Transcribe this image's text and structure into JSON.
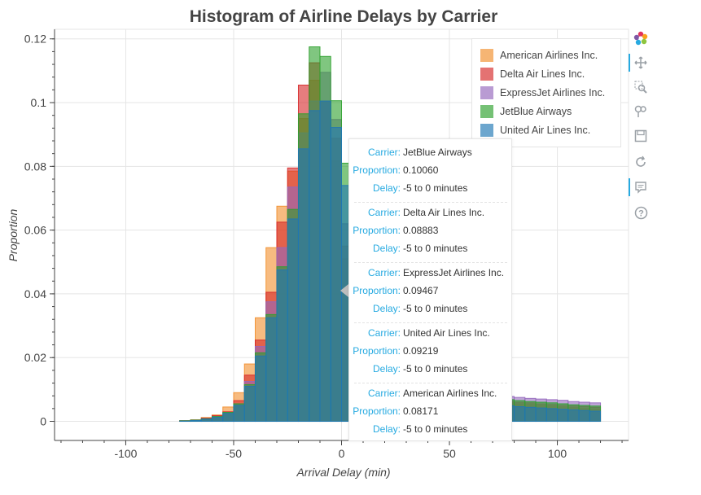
{
  "chart_data": {
    "type": "histogram",
    "title": "Histogram of Airline Delays by Carrier",
    "xlabel": "Arrival Delay (min)",
    "ylabel": "Proportion",
    "xlim": [
      -133,
      133
    ],
    "ylim": [
      -0.006,
      0.123
    ],
    "xticks": [
      -100,
      -50,
      0,
      50,
      100
    ],
    "yticks": [
      0,
      0.02,
      0.04,
      0.06,
      0.08,
      0.1,
      0.12
    ],
    "xtick_labels": [
      "-100",
      "-50",
      "0",
      "50",
      "100"
    ],
    "ytick_labels": [
      "0",
      "0.02",
      "0.04",
      "0.06",
      "0.08",
      "0.1",
      "0.12"
    ],
    "bin_width": 5,
    "bin_left": [
      -120,
      -115,
      -110,
      -105,
      -100,
      -95,
      -90,
      -85,
      -80,
      -75,
      -70,
      -65,
      -60,
      -55,
      -50,
      -45,
      -40,
      -35,
      -30,
      -25,
      -20,
      -15,
      -10,
      -5,
      0,
      5,
      10,
      15,
      20,
      25,
      30,
      35,
      40,
      45,
      50,
      55,
      60,
      65,
      70,
      75,
      80,
      85,
      90,
      95,
      100,
      105,
      110,
      115
    ],
    "grid": true,
    "legend_position": "top-right",
    "series": [
      {
        "name": "American Airlines Inc.",
        "color": "#f28e2b",
        "values": [
          0,
          0,
          0,
          0,
          0,
          0,
          0,
          0,
          0,
          0.0002,
          0.0005,
          0.0012,
          0.002,
          0.0045,
          0.009,
          0.018,
          0.0325,
          0.0545,
          0.0675,
          0.0785,
          0.095,
          0.107,
          0.1005,
          0.0817,
          0.051,
          0.034,
          0.024,
          0.018,
          0.014,
          0.012,
          0.01,
          0.009,
          0.008,
          0.0075,
          0.007,
          0.0068,
          0.0065,
          0.0062,
          0.006,
          0.0058,
          0.0055,
          0.0053,
          0.005,
          0.0048,
          0.0045,
          0.0043,
          0.004,
          0.0038
        ]
      },
      {
        "name": "Delta Air Lines Inc.",
        "color": "#d62728",
        "values": [
          0,
          0,
          0,
          0,
          0,
          0,
          0,
          0,
          0,
          0.0002,
          0.0004,
          0.001,
          0.0018,
          0.003,
          0.0065,
          0.0145,
          0.0255,
          0.0405,
          0.0625,
          0.0795,
          0.1055,
          0.1125,
          0.1005,
          0.0888,
          0.055,
          0.036,
          0.025,
          0.019,
          0.015,
          0.013,
          0.0115,
          0.0105,
          0.0095,
          0.0085,
          0.008,
          0.0075,
          0.007,
          0.0068,
          0.0065,
          0.0063,
          0.006,
          0.0058,
          0.0055,
          0.0053,
          0.005,
          0.0048,
          0.0046,
          0.0044
        ]
      },
      {
        "name": "ExpressJet Airlines Inc.",
        "color": "#9467bd",
        "values": [
          0,
          0,
          0,
          0,
          0,
          0,
          0,
          0,
          0,
          0.0001,
          0.0003,
          0.0008,
          0.0015,
          0.0028,
          0.0055,
          0.0125,
          0.0235,
          0.0375,
          0.0545,
          0.0735,
          0.0905,
          0.1005,
          0.1095,
          0.0947,
          0.062,
          0.041,
          0.029,
          0.022,
          0.018,
          0.015,
          0.013,
          0.012,
          0.011,
          0.0105,
          0.01,
          0.0095,
          0.009,
          0.0085,
          0.008,
          0.0078,
          0.0075,
          0.0072,
          0.007,
          0.0068,
          0.0066,
          0.0062,
          0.006,
          0.0058
        ]
      },
      {
        "name": "JetBlue Airways",
        "color": "#2ca02c",
        "values": [
          0,
          0,
          0,
          0,
          0,
          0,
          0,
          0,
          0,
          0.0002,
          0.0004,
          0.0008,
          0.0015,
          0.0028,
          0.0055,
          0.0115,
          0.0215,
          0.0335,
          0.0485,
          0.0665,
          0.0965,
          0.1175,
          0.1145,
          0.1006,
          0.081,
          0.048,
          0.033,
          0.024,
          0.018,
          0.015,
          0.013,
          0.0115,
          0.0105,
          0.0095,
          0.009,
          0.0085,
          0.008,
          0.0075,
          0.007,
          0.0068,
          0.0065,
          0.0062,
          0.006,
          0.0058,
          0.0055,
          0.0052,
          0.005,
          0.0048
        ]
      },
      {
        "name": "United Air Lines Inc.",
        "color": "#1f77b4",
        "values": [
          0,
          0,
          0,
          0,
          0,
          0,
          0,
          0,
          0,
          0.0001,
          0.0003,
          0.0007,
          0.0013,
          0.0025,
          0.005,
          0.011,
          0.0205,
          0.0325,
          0.0475,
          0.0635,
          0.0855,
          0.0975,
          0.1005,
          0.0922,
          0.074,
          0.045,
          0.031,
          0.022,
          0.016,
          0.013,
          0.011,
          0.0095,
          0.0085,
          0.0078,
          0.0072,
          0.0066,
          0.006,
          0.0056,
          0.0052,
          0.0049,
          0.0046,
          0.0044,
          0.0042,
          0.004,
          0.0038,
          0.0036,
          0.0034,
          0.0032
        ]
      }
    ]
  },
  "legend": {
    "items": [
      {
        "label": "American Airlines Inc.",
        "color": "#f28e2b"
      },
      {
        "label": "Delta Air Lines Inc.",
        "color": "#d62728"
      },
      {
        "label": "ExpressJet Airlines Inc.",
        "color": "#9467bd"
      },
      {
        "label": "JetBlue Airways",
        "color": "#2ca02c"
      },
      {
        "label": "United Air Lines Inc.",
        "color": "#1f77b4"
      }
    ]
  },
  "tooltip": {
    "keys": {
      "carrier": "Carrier:",
      "proportion": "Proportion:",
      "delay": "Delay:"
    },
    "entries": [
      {
        "carrier": "JetBlue Airways",
        "proportion": "0.10060",
        "delay": "-5 to 0 minutes"
      },
      {
        "carrier": "Delta Air Lines Inc.",
        "proportion": "0.08883",
        "delay": "-5 to 0 minutes"
      },
      {
        "carrier": "ExpressJet Airlines Inc.",
        "proportion": "0.09467",
        "delay": "-5 to 0 minutes"
      },
      {
        "carrier": "United Air Lines Inc.",
        "proportion": "0.09219",
        "delay": "-5 to 0 minutes"
      },
      {
        "carrier": "American Airlines Inc.",
        "proportion": "0.08171",
        "delay": "-5 to 0 minutes"
      }
    ]
  },
  "toolbar": {
    "icons": [
      "bokeh-logo-icon",
      "pan-icon",
      "box-zoom-icon",
      "wheel-zoom-icon",
      "save-icon",
      "reset-icon",
      "hover-icon",
      "help-icon"
    ]
  }
}
